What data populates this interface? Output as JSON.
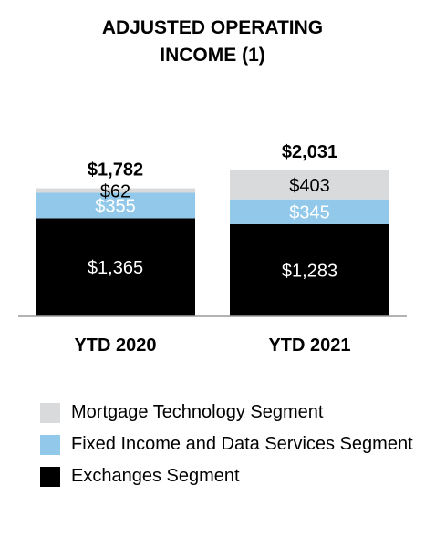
{
  "chart_data": {
    "type": "bar",
    "stacked": true,
    "title": [
      "ADJUSTED OPERATING",
      "INCOME (1)"
    ],
    "categories": [
      "YTD 2020",
      "YTD 2021"
    ],
    "totals": [
      "$1,782",
      "$2,031"
    ],
    "series": [
      {
        "name": "Exchanges Segment",
        "values": [
          1365,
          1283
        ],
        "labels": [
          "$1,365",
          "$1,283"
        ],
        "color": "#000000",
        "label_color": "#ffffff"
      },
      {
        "name": "Fixed Income and Data Services Segment",
        "values": [
          355,
          345
        ],
        "labels": [
          "$355",
          "$345"
        ],
        "color": "#92c9ea",
        "label_color": "#ffffff"
      },
      {
        "name": "Mortgage Technology Segment",
        "values": [
          62,
          403
        ],
        "labels": [
          "$62",
          "$403"
        ],
        "color": "#d9dadb",
        "label_color": "#000000"
      }
    ],
    "grid": false
  },
  "legend": [
    {
      "label": "Mortgage Technology Segment",
      "color": "#d9dadb"
    },
    {
      "label": "Fixed Income and Data Services Segment",
      "color": "#92c9ea"
    },
    {
      "label": "Exchanges Segment",
      "color": "#000000"
    }
  ]
}
